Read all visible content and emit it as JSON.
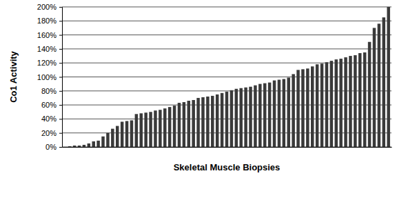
{
  "chart_data": {
    "type": "bar",
    "x_label": "Skeletal Muscle Biopsies",
    "y_label": "Co1 Activity",
    "categories": [
      null,
      null,
      null,
      null,
      null,
      null,
      null,
      null,
      null,
      null,
      null,
      null,
      null,
      null,
      null,
      null,
      null,
      null,
      null,
      null,
      null,
      null,
      null,
      null,
      null,
      null,
      null,
      null,
      null,
      null,
      null,
      null,
      null,
      null,
      null,
      null,
      null,
      null,
      null,
      null,
      null,
      null,
      null,
      null,
      null,
      null,
      null,
      null,
      null,
      null,
      null,
      null,
      null,
      null,
      null,
      null,
      null,
      null,
      null,
      null,
      null,
      null,
      null,
      null,
      null,
      null,
      null,
      null,
      null
    ],
    "values": [
      0,
      1,
      2,
      2,
      3,
      5,
      8,
      9,
      15,
      20,
      26,
      30,
      36,
      37,
      38,
      47,
      48,
      49,
      50,
      52,
      53,
      55,
      57,
      59,
      63,
      64,
      66,
      67,
      70,
      71,
      72,
      73,
      75,
      77,
      79,
      81,
      83,
      84,
      85,
      86,
      88,
      90,
      91,
      92,
      95,
      96,
      97,
      99,
      104,
      110,
      111,
      112,
      115,
      118,
      119,
      121,
      123,
      125,
      126,
      128,
      130,
      131,
      134,
      135,
      150,
      170,
      176,
      185,
      200
    ],
    "color": "#3a3a3a",
    "ylim": [
      0,
      200
    ],
    "yticks": [
      {
        "value": 0,
        "label": "0%"
      },
      {
        "value": 20,
        "label": "20%"
      },
      {
        "value": 40,
        "label": "40%"
      },
      {
        "value": 60,
        "label": "60%"
      },
      {
        "value": 80,
        "label": "80%"
      },
      {
        "value": 100,
        "label": "100%"
      },
      {
        "value": 120,
        "label": "120%"
      },
      {
        "value": 140,
        "label": "140%"
      },
      {
        "value": 160,
        "label": "160%"
      },
      {
        "value": 180,
        "label": "180%"
      },
      {
        "value": 200,
        "label": "200%"
      }
    ],
    "grid": true
  }
}
